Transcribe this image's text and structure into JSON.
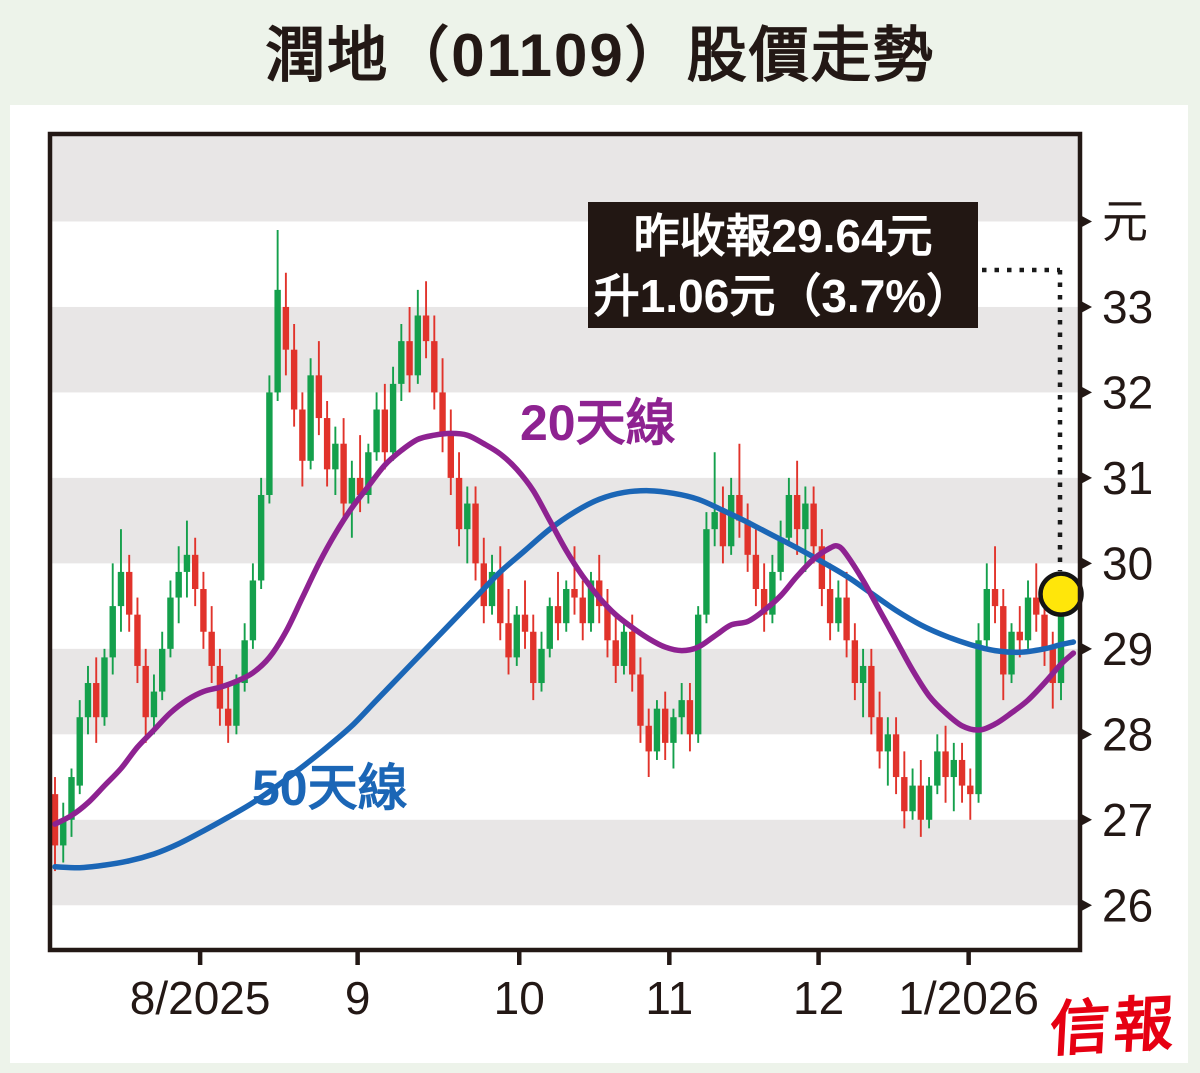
{
  "page": {
    "background": "#edf3ea",
    "panel_background": "#ffffff",
    "ink": "#231815"
  },
  "header": {
    "title": "潤地（01109）股價走勢"
  },
  "annotation": {
    "line1": "昨收報29.64元",
    "line2": "升1.06元（3.7%）",
    "bg": "#221713",
    "text_color": "#ffffff"
  },
  "footer": {
    "logo_text": "信報",
    "logo_color": "#e60012"
  },
  "chart_data": {
    "type": "candlestick",
    "title": "潤地（01109）股價走勢",
    "ylabel_unit": "元",
    "y_range": [
      25.5,
      35.0
    ],
    "grid": "horizontal-stripes",
    "stripe_levels": [
      [
        34,
        35
      ],
      [
        32,
        33
      ],
      [
        30,
        31
      ],
      [
        28,
        29
      ],
      [
        26,
        27
      ]
    ],
    "y_ticks": [
      {
        "label": "元",
        "value": 34
      },
      {
        "label": "33",
        "value": 33
      },
      {
        "label": "32",
        "value": 32
      },
      {
        "label": "31",
        "value": 31
      },
      {
        "label": "30",
        "value": 30
      },
      {
        "label": "29",
        "value": 29
      },
      {
        "label": "28",
        "value": 28
      },
      {
        "label": "27",
        "value": 27
      },
      {
        "label": "26",
        "value": 26
      }
    ],
    "x_ticks": [
      {
        "label": "8/2025",
        "day": 17.6
      },
      {
        "label": "9",
        "day": 36.7
      },
      {
        "label": "10",
        "day": 56.3
      },
      {
        "label": "11",
        "day": 74.5
      },
      {
        "label": "12",
        "day": 92.6
      },
      {
        "label": "1/2026",
        "day": 110.8
      }
    ],
    "series_labels": {
      "ma20": "20天線",
      "ma50": "50天線"
    },
    "colors": {
      "up": "#14a04c",
      "down": "#e1332b",
      "ma20": "#8e2291",
      "ma50": "#1b66b6",
      "stripe": "#e8e6e6",
      "axis": "#231815",
      "highlight_fill": "#ffe60a",
      "leader": "#1a1a1a"
    },
    "latest": {
      "day": 122,
      "close": 29.64
    },
    "candles_ohlc": [
      [
        27.3,
        27.5,
        26.4,
        26.7
      ],
      [
        26.7,
        27.2,
        26.5,
        27.0
      ],
      [
        27.0,
        27.6,
        26.8,
        27.5
      ],
      [
        27.4,
        28.4,
        27.3,
        28.2
      ],
      [
        28.2,
        28.8,
        28.0,
        28.6
      ],
      [
        28.6,
        28.9,
        27.9,
        28.2
      ],
      [
        28.2,
        29.0,
        28.1,
        28.9
      ],
      [
        28.9,
        30.0,
        28.7,
        29.5
      ],
      [
        29.5,
        30.4,
        29.2,
        29.9
      ],
      [
        29.9,
        30.1,
        29.2,
        29.4
      ],
      [
        29.4,
        29.6,
        28.6,
        28.8
      ],
      [
        28.8,
        29.0,
        27.9,
        28.2
      ],
      [
        28.2,
        28.7,
        28.0,
        28.5
      ],
      [
        28.5,
        29.2,
        28.4,
        29.0
      ],
      [
        29.0,
        29.8,
        28.9,
        29.6
      ],
      [
        29.6,
        30.2,
        29.3,
        29.9
      ],
      [
        29.9,
        30.5,
        29.6,
        30.1
      ],
      [
        30.1,
        30.3,
        29.5,
        29.7
      ],
      [
        29.7,
        29.9,
        29.0,
        29.2
      ],
      [
        29.2,
        29.5,
        28.6,
        28.8
      ],
      [
        28.8,
        29.0,
        28.1,
        28.3
      ],
      [
        28.3,
        28.6,
        27.9,
        28.1
      ],
      [
        28.1,
        28.7,
        28.0,
        28.6
      ],
      [
        28.6,
        29.3,
        28.5,
        29.1
      ],
      [
        29.1,
        30.0,
        29.0,
        29.8
      ],
      [
        29.8,
        31.0,
        29.7,
        30.8
      ],
      [
        30.8,
        32.2,
        30.7,
        32.0
      ],
      [
        32.0,
        33.9,
        31.9,
        33.2
      ],
      [
        33.0,
        33.4,
        32.2,
        32.5
      ],
      [
        32.5,
        32.8,
        31.6,
        31.8
      ],
      [
        31.8,
        32.0,
        30.9,
        31.2
      ],
      [
        31.2,
        32.4,
        31.1,
        32.2
      ],
      [
        32.2,
        32.6,
        31.5,
        31.7
      ],
      [
        31.7,
        31.9,
        30.9,
        31.1
      ],
      [
        31.1,
        31.6,
        30.8,
        31.4
      ],
      [
        31.4,
        31.7,
        30.5,
        30.7
      ],
      [
        30.7,
        31.2,
        30.3,
        31.0
      ],
      [
        31.0,
        31.5,
        30.6,
        30.8
      ],
      [
        30.8,
        31.4,
        30.7,
        31.3
      ],
      [
        31.3,
        32.0,
        31.2,
        31.8
      ],
      [
        31.8,
        32.1,
        31.1,
        31.3
      ],
      [
        31.3,
        32.3,
        31.2,
        32.1
      ],
      [
        32.1,
        32.8,
        31.9,
        32.6
      ],
      [
        32.6,
        33.0,
        32.0,
        32.2
      ],
      [
        32.2,
        33.2,
        32.1,
        32.9
      ],
      [
        32.9,
        33.3,
        32.4,
        32.6
      ],
      [
        32.6,
        32.9,
        31.8,
        32.0
      ],
      [
        32.0,
        32.4,
        31.3,
        31.5
      ],
      [
        31.5,
        31.8,
        30.8,
        31.0
      ],
      [
        31.0,
        31.3,
        30.2,
        30.4
      ],
      [
        30.4,
        30.9,
        30.0,
        30.7
      ],
      [
        30.7,
        30.9,
        29.8,
        30.0
      ],
      [
        30.0,
        30.3,
        29.3,
        29.5
      ],
      [
        29.5,
        30.1,
        29.4,
        29.9
      ],
      [
        29.9,
        30.2,
        29.1,
        29.3
      ],
      [
        29.3,
        29.7,
        28.7,
        28.9
      ],
      [
        28.9,
        29.5,
        28.8,
        29.4
      ],
      [
        29.4,
        29.8,
        29.0,
        29.2
      ],
      [
        29.2,
        29.4,
        28.4,
        28.6
      ],
      [
        28.6,
        29.2,
        28.5,
        29.0
      ],
      [
        29.0,
        29.6,
        28.9,
        29.5
      ],
      [
        29.5,
        29.9,
        29.1,
        29.3
      ],
      [
        29.3,
        29.8,
        29.2,
        29.7
      ],
      [
        29.7,
        30.2,
        29.4,
        29.6
      ],
      [
        29.6,
        29.8,
        29.1,
        29.3
      ],
      [
        29.3,
        29.9,
        29.2,
        29.8
      ],
      [
        29.8,
        30.1,
        29.3,
        29.5
      ],
      [
        29.5,
        29.7,
        28.9,
        29.1
      ],
      [
        29.1,
        29.4,
        28.6,
        28.8
      ],
      [
        28.8,
        29.3,
        28.7,
        29.2
      ],
      [
        29.2,
        29.4,
        28.5,
        28.7
      ],
      [
        28.7,
        28.9,
        27.9,
        28.1
      ],
      [
        28.1,
        28.3,
        27.5,
        27.8
      ],
      [
        27.8,
        28.4,
        27.7,
        28.3
      ],
      [
        28.3,
        28.5,
        27.7,
        27.9
      ],
      [
        27.9,
        28.3,
        27.6,
        28.2
      ],
      [
        28.2,
        28.6,
        28.0,
        28.4
      ],
      [
        28.4,
        28.6,
        27.8,
        28.0
      ],
      [
        28.0,
        29.5,
        27.9,
        29.4
      ],
      [
        29.4,
        30.6,
        29.3,
        30.4
      ],
      [
        30.4,
        31.3,
        30.2,
        30.6
      ],
      [
        30.6,
        30.9,
        30.0,
        30.2
      ],
      [
        30.2,
        31.0,
        30.1,
        30.8
      ],
      [
        30.8,
        31.4,
        30.3,
        30.5
      ],
      [
        30.5,
        30.7,
        29.9,
        30.1
      ],
      [
        30.1,
        30.4,
        29.5,
        29.7
      ],
      [
        29.7,
        30.0,
        29.2,
        29.4
      ],
      [
        29.4,
        30.1,
        29.3,
        29.9
      ],
      [
        29.9,
        30.5,
        29.8,
        30.3
      ],
      [
        30.3,
        31.0,
        30.2,
        30.8
      ],
      [
        30.8,
        31.2,
        30.1,
        30.4
      ],
      [
        30.4,
        30.9,
        29.9,
        30.7
      ],
      [
        30.7,
        30.9,
        30.0,
        30.2
      ],
      [
        30.2,
        30.4,
        29.5,
        29.7
      ],
      [
        29.7,
        30.0,
        29.1,
        29.3
      ],
      [
        29.3,
        29.8,
        29.2,
        29.6
      ],
      [
        29.6,
        29.9,
        28.9,
        29.1
      ],
      [
        29.1,
        29.3,
        28.4,
        28.6
      ],
      [
        28.6,
        29.0,
        28.2,
        28.8
      ],
      [
        28.8,
        29.0,
        28.0,
        28.2
      ],
      [
        28.2,
        28.5,
        27.6,
        27.8
      ],
      [
        27.8,
        28.2,
        27.4,
        28.0
      ],
      [
        28.0,
        28.2,
        27.3,
        27.5
      ],
      [
        27.5,
        27.8,
        26.9,
        27.1
      ],
      [
        27.1,
        27.6,
        27.0,
        27.4
      ],
      [
        27.4,
        27.7,
        26.8,
        27.0
      ],
      [
        27.0,
        27.5,
        26.9,
        27.4
      ],
      [
        27.4,
        28.0,
        27.3,
        27.8
      ],
      [
        27.8,
        28.1,
        27.2,
        27.5
      ],
      [
        27.5,
        27.9,
        27.1,
        27.7
      ],
      [
        27.7,
        27.9,
        27.2,
        27.4
      ],
      [
        27.4,
        27.6,
        27.0,
        27.3
      ],
      [
        27.3,
        29.3,
        27.2,
        29.1
      ],
      [
        29.1,
        30.0,
        29.0,
        29.7
      ],
      [
        29.7,
        30.2,
        29.3,
        29.5
      ],
      [
        29.5,
        29.7,
        28.4,
        28.7
      ],
      [
        28.7,
        29.3,
        28.6,
        29.2
      ],
      [
        29.2,
        29.5,
        28.9,
        29.1
      ],
      [
        29.1,
        29.8,
        29.0,
        29.6
      ],
      [
        29.6,
        30.0,
        29.2,
        29.4
      ],
      [
        29.4,
        29.6,
        28.8,
        29.0
      ],
      [
        29.0,
        29.2,
        28.3,
        28.6
      ],
      [
        28.6,
        29.8,
        28.4,
        29.64
      ]
    ],
    "ma20": [
      [
        0,
        26.95
      ],
      [
        2,
        27.05
      ],
      [
        4,
        27.2
      ],
      [
        6,
        27.4
      ],
      [
        8,
        27.6
      ],
      [
        10,
        27.85
      ],
      [
        12,
        28.05
      ],
      [
        14,
        28.25
      ],
      [
        16,
        28.4
      ],
      [
        18,
        28.5
      ],
      [
        20,
        28.55
      ],
      [
        22,
        28.62
      ],
      [
        24,
        28.72
      ],
      [
        26,
        28.9
      ],
      [
        28,
        29.2
      ],
      [
        30,
        29.6
      ],
      [
        32,
        30.0
      ],
      [
        34,
        30.35
      ],
      [
        36,
        30.65
      ],
      [
        38,
        30.9
      ],
      [
        40,
        31.15
      ],
      [
        42,
        31.32
      ],
      [
        44,
        31.45
      ],
      [
        46,
        31.5
      ],
      [
        48,
        31.52
      ],
      [
        50,
        31.5
      ],
      [
        52,
        31.4
      ],
      [
        54,
        31.28
      ],
      [
        56,
        31.1
      ],
      [
        58,
        30.85
      ],
      [
        60,
        30.5
      ],
      [
        62,
        30.15
      ],
      [
        64,
        29.85
      ],
      [
        66,
        29.6
      ],
      [
        68,
        29.4
      ],
      [
        70,
        29.25
      ],
      [
        72,
        29.12
      ],
      [
        74,
        29.02
      ],
      [
        76,
        28.98
      ],
      [
        78,
        29.02
      ],
      [
        80,
        29.15
      ],
      [
        82,
        29.28
      ],
      [
        84,
        29.32
      ],
      [
        86,
        29.45
      ],
      [
        88,
        29.62
      ],
      [
        90,
        29.85
      ],
      [
        92,
        30.05
      ],
      [
        94,
        30.18
      ],
      [
        95,
        30.2
      ],
      [
        96,
        30.1
      ],
      [
        98,
        29.8
      ],
      [
        100,
        29.45
      ],
      [
        102,
        29.1
      ],
      [
        104,
        28.75
      ],
      [
        106,
        28.45
      ],
      [
        108,
        28.25
      ],
      [
        110,
        28.1
      ],
      [
        112,
        28.05
      ],
      [
        114,
        28.12
      ],
      [
        116,
        28.25
      ],
      [
        118,
        28.4
      ],
      [
        120,
        28.6
      ],
      [
        122,
        28.82
      ],
      [
        123.5,
        28.95
      ]
    ],
    "ma50": [
      [
        0,
        26.45
      ],
      [
        3,
        26.44
      ],
      [
        6,
        26.47
      ],
      [
        9,
        26.52
      ],
      [
        12,
        26.6
      ],
      [
        15,
        26.72
      ],
      [
        18,
        26.87
      ],
      [
        21,
        27.03
      ],
      [
        24,
        27.2
      ],
      [
        27,
        27.4
      ],
      [
        30,
        27.62
      ],
      [
        33,
        27.85
      ],
      [
        36,
        28.1
      ],
      [
        39,
        28.4
      ],
      [
        42,
        28.7
      ],
      [
        45,
        29.0
      ],
      [
        48,
        29.3
      ],
      [
        51,
        29.6
      ],
      [
        54,
        29.9
      ],
      [
        57,
        30.15
      ],
      [
        60,
        30.4
      ],
      [
        63,
        30.6
      ],
      [
        66,
        30.75
      ],
      [
        69,
        30.83
      ],
      [
        72,
        30.85
      ],
      [
        75,
        30.82
      ],
      [
        78,
        30.75
      ],
      [
        81,
        30.62
      ],
      [
        84,
        30.48
      ],
      [
        87,
        30.33
      ],
      [
        90,
        30.18
      ],
      [
        93,
        30.02
      ],
      [
        96,
        29.85
      ],
      [
        99,
        29.65
      ],
      [
        102,
        29.45
      ],
      [
        105,
        29.28
      ],
      [
        108,
        29.15
      ],
      [
        111,
        29.05
      ],
      [
        114,
        28.98
      ],
      [
        117,
        28.96
      ],
      [
        120,
        29.0
      ],
      [
        122,
        29.05
      ],
      [
        123.5,
        29.08
      ]
    ]
  }
}
